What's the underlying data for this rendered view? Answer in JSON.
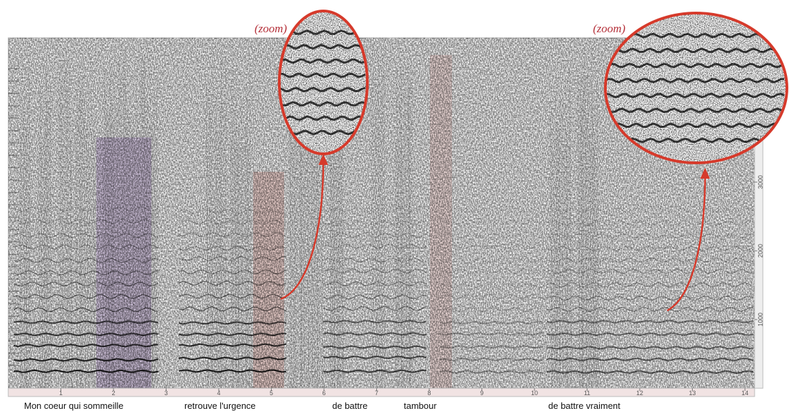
{
  "figure": {
    "time_ticks": [
      1,
      2,
      3,
      4,
      5,
      6,
      7,
      8,
      9,
      10,
      11,
      12,
      13,
      14
    ],
    "frequency_ticks": [
      1000,
      2000,
      3000
    ],
    "lyrics": [
      "Mon coeur qui sommeille",
      "retrouve l'urgence",
      "de battre",
      "tambour",
      "de battre vraiment"
    ],
    "zoom_labels": [
      "(zoom)",
      "(zoom)"
    ]
  }
}
